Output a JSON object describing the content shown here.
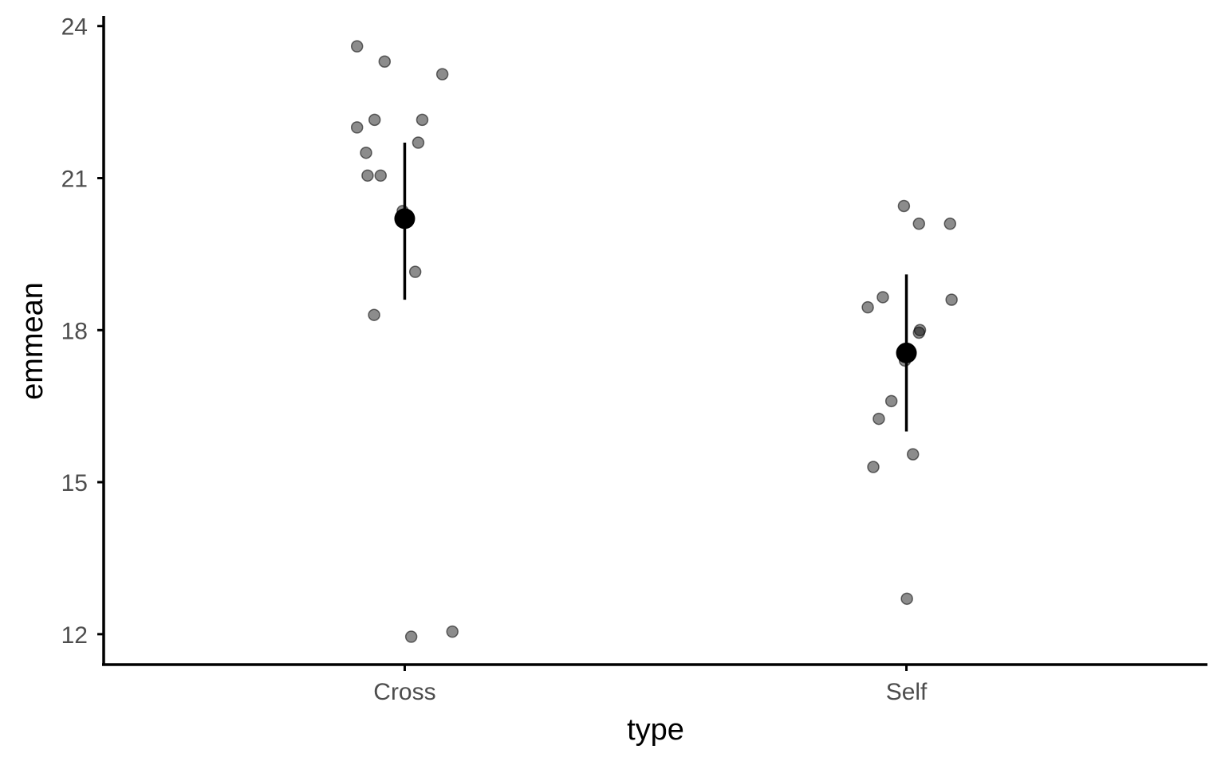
{
  "chart_data": {
    "type": "scatter",
    "xlabel": "type",
    "ylabel": "emmean",
    "categories": [
      "Cross",
      "Self"
    ],
    "y_ticks": [
      12,
      15,
      18,
      21,
      24
    ],
    "ylim": [
      11.4,
      24.2
    ],
    "grid": false,
    "colors": {
      "points": "#000000",
      "axis": "#000000",
      "tick_text": "#4d4d4d"
    },
    "summary": [
      {
        "category": "Cross",
        "emmean": 20.2,
        "lower": 18.6,
        "upper": 21.7
      },
      {
        "category": "Self",
        "emmean": 17.55,
        "lower": 16.0,
        "upper": 19.1
      }
    ],
    "raw_points": [
      {
        "category": "Cross",
        "jitter": -0.095,
        "y": 23.6
      },
      {
        "category": "Cross",
        "jitter": -0.04,
        "y": 23.3
      },
      {
        "category": "Cross",
        "jitter": 0.075,
        "y": 23.05
      },
      {
        "category": "Cross",
        "jitter": -0.095,
        "y": 22.0
      },
      {
        "category": "Cross",
        "jitter": -0.06,
        "y": 22.15
      },
      {
        "category": "Cross",
        "jitter": 0.035,
        "y": 22.15
      },
      {
        "category": "Cross",
        "jitter": 0.027,
        "y": 21.7
      },
      {
        "category": "Cross",
        "jitter": -0.077,
        "y": 21.5
      },
      {
        "category": "Cross",
        "jitter": -0.074,
        "y": 21.05
      },
      {
        "category": "Cross",
        "jitter": -0.048,
        "y": 21.05
      },
      {
        "category": "Cross",
        "jitter": -0.004,
        "y": 20.35
      },
      {
        "category": "Cross",
        "jitter": 0.021,
        "y": 19.15
      },
      {
        "category": "Cross",
        "jitter": -0.061,
        "y": 18.3
      },
      {
        "category": "Cross",
        "jitter": 0.013,
        "y": 11.95
      },
      {
        "category": "Cross",
        "jitter": 0.095,
        "y": 12.05
      },
      {
        "category": "Self",
        "jitter": -0.005,
        "y": 20.45
      },
      {
        "category": "Self",
        "jitter": 0.025,
        "y": 20.1
      },
      {
        "category": "Self",
        "jitter": 0.087,
        "y": 20.1
      },
      {
        "category": "Self",
        "jitter": -0.047,
        "y": 18.65
      },
      {
        "category": "Self",
        "jitter": -0.077,
        "y": 18.45
      },
      {
        "category": "Self",
        "jitter": 0.09,
        "y": 18.6
      },
      {
        "category": "Self",
        "jitter": 0.027,
        "y": 18.0
      },
      {
        "category": "Self",
        "jitter": 0.025,
        "y": 17.95
      },
      {
        "category": "Self",
        "jitter": -0.003,
        "y": 17.4
      },
      {
        "category": "Self",
        "jitter": -0.03,
        "y": 16.6
      },
      {
        "category": "Self",
        "jitter": -0.055,
        "y": 16.25
      },
      {
        "category": "Self",
        "jitter": 0.013,
        "y": 15.55
      },
      {
        "category": "Self",
        "jitter": -0.066,
        "y": 15.3
      },
      {
        "category": "Self",
        "jitter": 0.001,
        "y": 12.7
      }
    ]
  }
}
